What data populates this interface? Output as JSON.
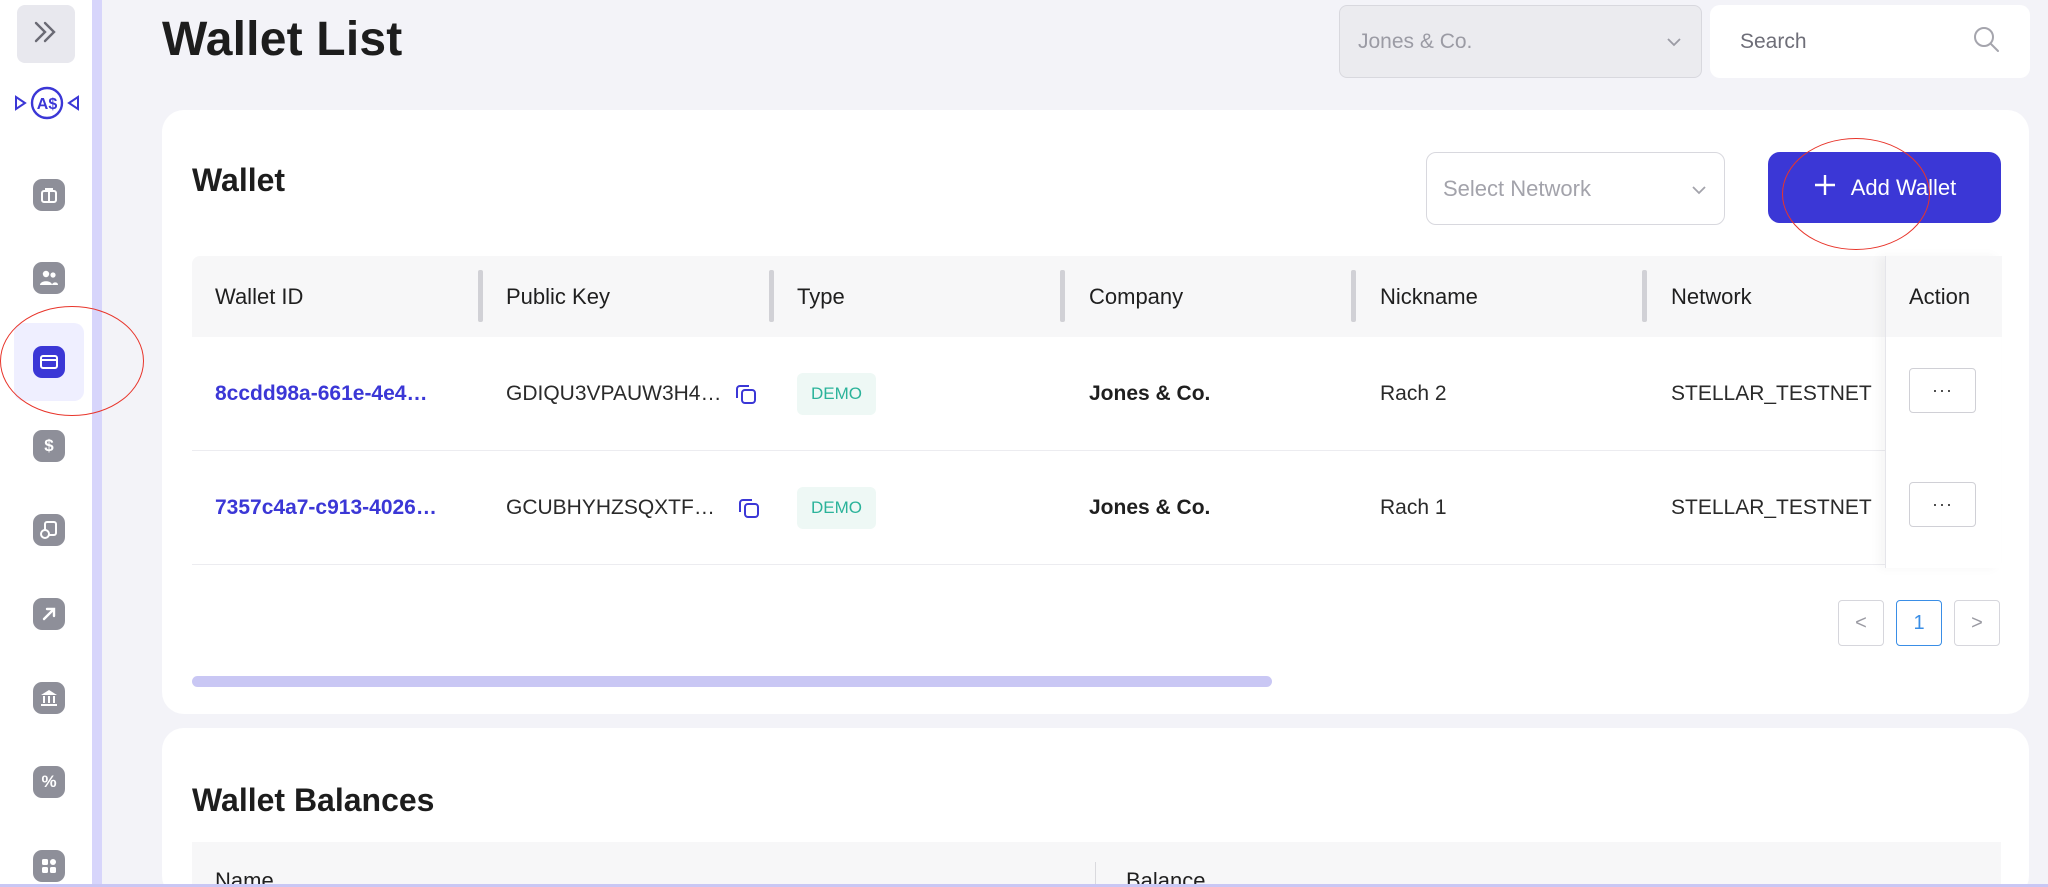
{
  "header": {
    "title": "Wallet List",
    "company_select": "Jones & Co.",
    "search_placeholder": "Search"
  },
  "sidebar": {
    "items": [
      {
        "icon": "briefcase-icon"
      },
      {
        "icon": "users-icon"
      },
      {
        "icon": "wallet-icon",
        "active": true
      },
      {
        "icon": "dollar-icon"
      },
      {
        "icon": "coins-icon"
      },
      {
        "icon": "arrow-up-right-icon"
      },
      {
        "icon": "bank-icon"
      },
      {
        "icon": "percent-icon"
      },
      {
        "icon": "apps-icon"
      }
    ],
    "dollar_glyph": "$",
    "percent_glyph": "%",
    "logo_text": "A$"
  },
  "wallet_card": {
    "title": "Wallet",
    "network_placeholder": "Select Network",
    "add_button_label": "Add Wallet",
    "columns": [
      "Wallet ID",
      "Public Key",
      "Type",
      "Company",
      "Nickname",
      "Network",
      "Action"
    ],
    "rows": [
      {
        "wallet_id": "8ccdd98a-661e-4e4…",
        "public_key": "GDIQU3VPAUW3H4…",
        "type": "DEMO",
        "company": "Jones & Co.",
        "nickname": "Rach 2",
        "network": "STELLAR_TESTNET",
        "action": "···"
      },
      {
        "wallet_id": "7357c4a7-c913-4026…",
        "public_key": "GCUBHYHZSQXTF…",
        "type": "DEMO",
        "company": "Jones & Co.",
        "nickname": "Rach 1",
        "network": "STELLAR_TESTNET",
        "action": "···"
      }
    ],
    "pagination": {
      "prev": "<",
      "current": "1",
      "next": ">"
    }
  },
  "balances_card": {
    "title": "Wallet Balances",
    "columns": [
      "Name",
      "Balance"
    ]
  },
  "colors": {
    "accent": "#3b37d6",
    "demo_badge": "#2bb39a",
    "annotation": "#e8352b"
  }
}
